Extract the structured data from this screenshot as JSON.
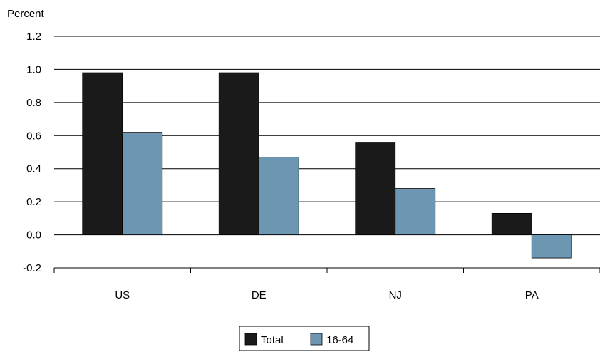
{
  "chart_data": {
    "type": "bar",
    "ylabel": "Percent",
    "categories": [
      "US",
      "DE",
      "NJ",
      "PA"
    ],
    "series": [
      {
        "name": "Total",
        "color": "#1a1a1a",
        "values": [
          0.98,
          0.98,
          0.56,
          0.13
        ]
      },
      {
        "name": "16-64",
        "color": "#6d96b3",
        "values": [
          0.62,
          0.47,
          0.28,
          -0.14
        ]
      }
    ],
    "yticks": [
      "1.2",
      "1.0",
      "0.8",
      "0.6",
      "0.4",
      "0.2",
      "0.0",
      "-0.2"
    ],
    "ylim": [
      -0.2,
      1.2
    ],
    "grid": true,
    "legend_position": "bottom-center"
  }
}
